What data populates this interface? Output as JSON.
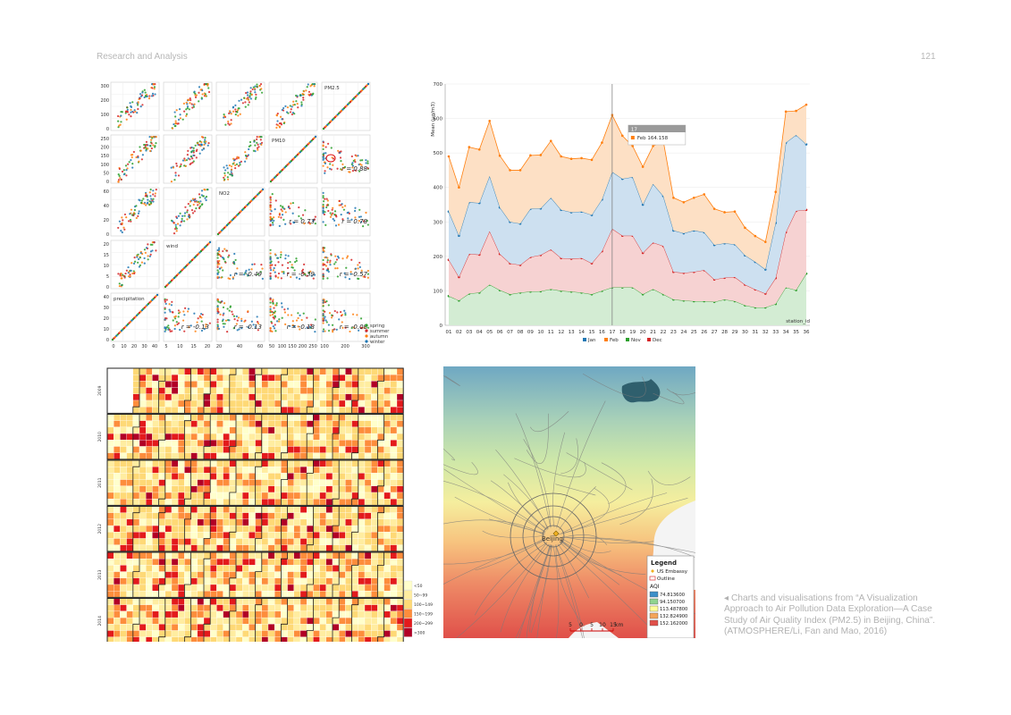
{
  "header": {
    "running_title": "Research and Analysis",
    "page_number": "121"
  },
  "caption": {
    "lines": [
      "◂ Charts and visualisations from “A Visualization",
      "Approach to Air Pollution Data Exploration—A Case",
      "Study of Air Quality Index (PM2.5) in Beijing, China”.",
      "(ATMOSPHERE/Li, Fan and Mao, 2016)"
    ]
  },
  "chart_data": [
    {
      "type": "scatter",
      "variables": [
        "PM2.5",
        "PM10",
        "NO2",
        "wind",
        "precipitation"
      ],
      "correlations": {
        "PM2.5~PM10": "r = 0.88",
        "PM2.5~NO2": "r = 0.78",
        "PM10~NO2": "r = 0.73",
        "wind~NO2": "r = -0.49",
        "wind~PM10": "r = -0.39",
        "wind~PM2.5": "r = -0.57",
        "precipitation~wind": "r = -0.13",
        "precipitation~NO2": "r = -0.13",
        "precipitation~PM10": "r = -0.18",
        "precipitation~PM2.5": "r = -0.08"
      },
      "row_ticks": [
        [
          "300",
          "200",
          "100",
          "0"
        ],
        [
          "250",
          "200",
          "150",
          "100",
          "50",
          "0"
        ],
        [
          "60",
          "40",
          "20",
          "0"
        ],
        [
          "20",
          "15",
          "10",
          "5",
          "0"
        ],
        [
          "40",
          "30",
          "20",
          "10",
          "0"
        ]
      ],
      "col_ticks": [
        [
          "0",
          "10",
          "20",
          "30",
          "40"
        ],
        [
          "5",
          "10",
          "15",
          "20"
        ],
        [
          "20",
          "40",
          "60"
        ],
        [
          "50",
          "100",
          "150",
          "200",
          "250"
        ],
        [
          "100",
          "200",
          "300"
        ]
      ],
      "legend": [
        "spring",
        "summer",
        "autumn",
        "winter"
      ],
      "legend_colors": [
        "#2ca02c",
        "#d62728",
        "#ff7f0e",
        "#1f77b4"
      ]
    },
    {
      "type": "area",
      "stacked": true,
      "categories": [
        "01",
        "02",
        "03",
        "04",
        "05",
        "06",
        "07",
        "08",
        "09",
        "10",
        "11",
        "12",
        "13",
        "14",
        "15",
        "16",
        "17",
        "18",
        "19",
        "20",
        "21",
        "22",
        "23",
        "24",
        "25",
        "26",
        "27",
        "28",
        "29",
        "30",
        "31",
        "32",
        "33",
        "34",
        "35",
        "36"
      ],
      "series": [
        {
          "name": "Jan",
          "color": "#1f77b4",
          "values": [
            140,
            120,
            150,
            150,
            160,
            135,
            120,
            120,
            140,
            135,
            150,
            140,
            135,
            135,
            140,
            150,
            165,
            165,
            170,
            140,
            170,
            145,
            120,
            115,
            120,
            110,
            100,
            100,
            95,
            85,
            80,
            70,
            160,
            260,
            220,
            190
          ]
        },
        {
          "name": "Feb",
          "color": "#ff7f0e",
          "values": [
            160,
            140,
            160,
            155,
            160,
            150,
            150,
            155,
            155,
            155,
            165,
            155,
            155,
            155,
            160,
            165,
            165,
            125,
            90,
            110,
            110,
            160,
            95,
            90,
            95,
            110,
            105,
            90,
            95,
            80,
            75,
            80,
            90,
            90,
            70,
            115
          ]
        },
        {
          "name": "Nov",
          "color": "#2ca02c",
          "values": [
            85,
            72,
            92,
            95,
            118,
            102,
            90,
            95,
            98,
            99,
            105,
            100,
            98,
            95,
            90,
            100,
            110,
            110,
            110,
            90,
            105,
            90,
            75,
            72,
            70,
            70,
            68,
            75,
            70,
            58,
            52,
            52,
            62,
            110,
            102,
            150
          ]
        },
        {
          "name": "Dec",
          "color": "#d62728",
          "values": [
            105,
            68,
            115,
            110,
            155,
            105,
            90,
            80,
            100,
            105,
            115,
            95,
            95,
            100,
            90,
            115,
            170,
            150,
            150,
            120,
            135,
            140,
            80,
            80,
            85,
            90,
            65,
            63,
            70,
            60,
            52,
            40,
            75,
            160,
            230,
            185
          ]
        }
      ],
      "series_order_bottom_to_top": [
        "Nov",
        "Dec",
        "Jan",
        "Feb"
      ],
      "ylabel": "Mean (µg/m3)",
      "xlabel": "station_id",
      "ylim": [
        0,
        700
      ],
      "yticks": [
        "0",
        "100",
        "200",
        "300",
        "400",
        "500",
        "600",
        "700"
      ],
      "crosshair_at": "17",
      "tooltip": {
        "title": "17",
        "entry": "Feb  164.158"
      }
    },
    {
      "type": "heatmap",
      "years": [
        "2009",
        "2010",
        "2011",
        "2012",
        "2013",
        "2014"
      ],
      "legend": [
        "<50",
        "50~99",
        "100~149",
        "150~199",
        "200~299",
        ">300"
      ],
      "legend_colors": [
        "#ffffcc",
        "#ffeda0",
        "#fed976",
        "#fd8d3c",
        "#e31a1c",
        "#b10026"
      ]
    },
    {
      "type": "map",
      "place_labels": [
        "Beijing"
      ],
      "legend": {
        "title": "Legend",
        "items": [
          "US Embassy",
          "Outline"
        ],
        "aqi_title": "AQI",
        "aqi_classes": [
          "74.813600",
          "94.150700",
          "113.487800",
          "132.824900",
          "152.162000"
        ],
        "aqi_colors": [
          "#3d8fc8",
          "#8fd48f",
          "#ffff99",
          "#f4a55a",
          "#e0504a"
        ]
      },
      "scale": {
        "ticks": [
          "5",
          "0",
          "5",
          "10",
          "15"
        ],
        "unit": "km"
      }
    }
  ]
}
